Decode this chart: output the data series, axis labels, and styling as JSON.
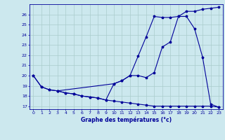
{
  "xlabel": "Graphe des températures (°c)",
  "background_color": "#cce8ee",
  "grid_color": "#aacccc",
  "line_color": "#000099",
  "xlim": [
    -0.5,
    23.5
  ],
  "ylim": [
    16.7,
    27.0
  ],
  "yticks": [
    17,
    18,
    19,
    20,
    21,
    22,
    23,
    24,
    25,
    26
  ],
  "xticks": [
    0,
    1,
    2,
    3,
    4,
    5,
    6,
    7,
    8,
    9,
    10,
    11,
    12,
    13,
    14,
    15,
    16,
    17,
    18,
    19,
    20,
    21,
    22,
    23
  ],
  "line1_x": [
    0,
    1,
    2,
    3,
    4,
    5,
    6,
    7,
    8,
    9,
    10,
    11,
    12,
    13,
    14,
    15,
    16,
    17,
    18,
    19,
    20,
    21,
    22,
    23
  ],
  "line1_y": [
    20.0,
    18.9,
    18.6,
    18.5,
    18.3,
    18.2,
    18.0,
    17.9,
    17.8,
    17.6,
    19.2,
    19.5,
    20.0,
    20.0,
    19.8,
    20.3,
    22.8,
    23.3,
    25.8,
    25.8,
    24.6,
    21.8,
    17.2,
    16.9
  ],
  "line2_x": [
    0,
    1,
    2,
    3,
    4,
    5,
    6,
    7,
    8,
    9,
    10,
    11,
    12,
    13,
    14,
    15,
    16,
    17,
    18,
    19,
    20,
    21,
    22,
    23
  ],
  "line2_y": [
    20.0,
    18.9,
    18.6,
    18.5,
    18.3,
    18.2,
    18.0,
    17.9,
    17.8,
    17.6,
    17.5,
    17.4,
    17.3,
    17.2,
    17.1,
    17.0,
    17.0,
    17.0,
    17.0,
    17.0,
    17.0,
    17.0,
    17.0,
    16.9
  ],
  "line3_x": [
    3,
    10,
    11,
    12,
    13,
    14,
    15,
    16,
    17,
    18,
    19,
    20,
    21,
    22,
    23
  ],
  "line3_y": [
    18.5,
    19.2,
    19.5,
    20.0,
    21.9,
    23.8,
    25.8,
    25.7,
    25.7,
    25.8,
    26.3,
    26.3,
    26.5,
    26.6,
    26.7
  ]
}
